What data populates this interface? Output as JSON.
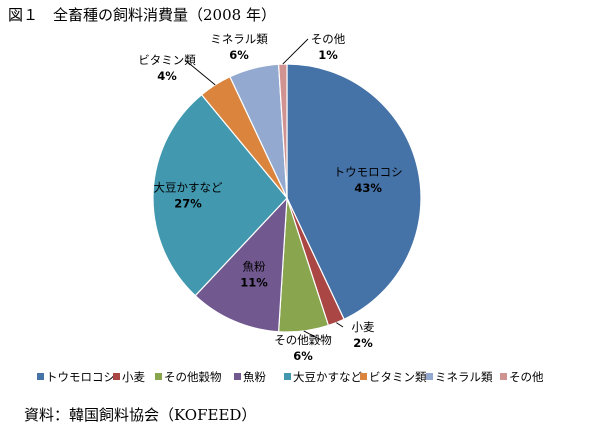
{
  "title": "図１　全畜種の飼料消費量（2008 年）",
  "source": "資料：韓国飼料協会（KOFEED）",
  "chart_data": {
    "type": "pie",
    "title": "全畜種の飼料消費量（2008 年）",
    "categories": [
      "トウモロコシ",
      "小麦",
      "その他穀物",
      "魚粉",
      "大豆かすなど",
      "ビタミン類",
      "ミネラル類",
      "その他"
    ],
    "values": [
      43,
      2,
      6,
      11,
      27,
      4,
      6,
      1
    ],
    "value_labels": [
      "43%",
      "2%",
      "6%",
      "11%",
      "27%",
      "4%",
      "6%",
      "1%"
    ],
    "slice_labels": [
      "トウモロコシ",
      "小麦",
      "その他穀物",
      "魚粉",
      "大豆かすなど",
      "ビタミン類",
      "ミネラル類",
      "その他"
    ],
    "legend_labels": [
      "トウモロコシ",
      "小麦",
      "その他穀物",
      "魚粉",
      "大豆かすなど",
      "ビタミン類",
      "ミネラル類",
      "その他"
    ],
    "colors": [
      "#4572A7",
      "#AA4643",
      "#89A54E",
      "#71588F",
      "#4198AF",
      "#DB843D",
      "#93A9CF",
      "#D19392"
    ],
    "legend_position": "bottom",
    "start_angle": "12 o'clock",
    "direction": "clockwise"
  }
}
